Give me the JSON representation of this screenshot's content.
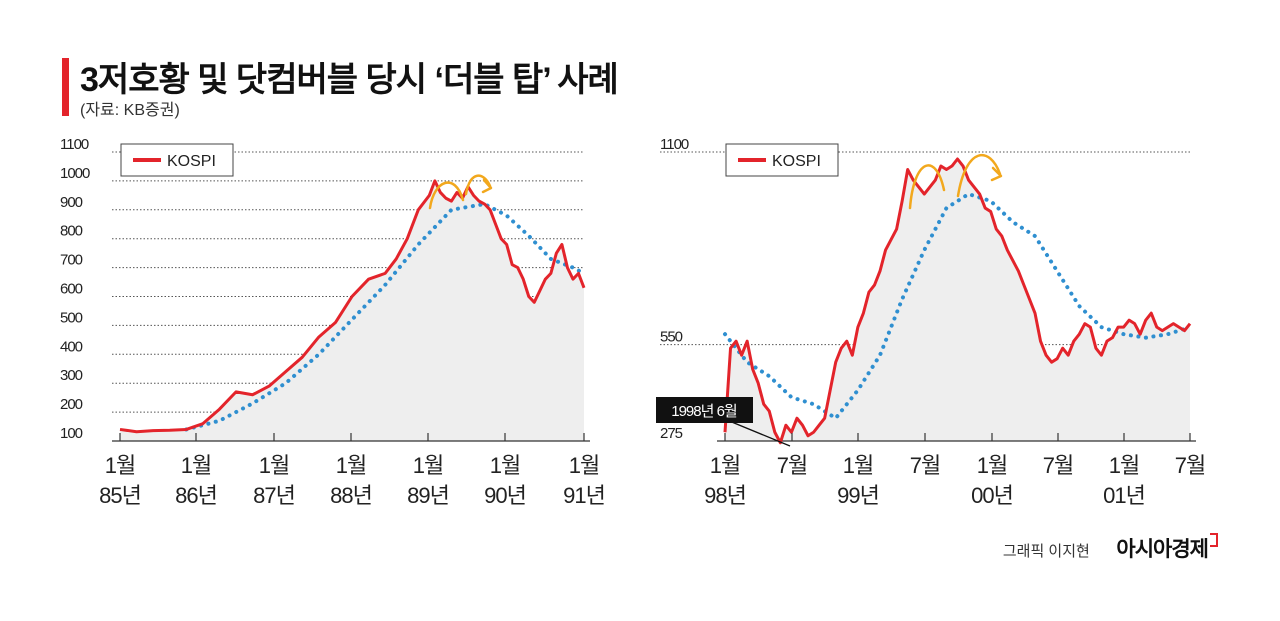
{
  "title": "3저호황 및 닷컴버블 당시 ‘더블 탑’ 사례",
  "source": "(자료: KB증권)",
  "credit": "그래픽 이지현",
  "brand": "아시아경제",
  "colors": {
    "accent": "#e3242b",
    "series": "#e3242b",
    "trend": "#2f8fd0",
    "arrow": "#f2a81d",
    "fill": "#eeeeee"
  },
  "chart_data": [
    {
      "type": "line",
      "grid": true,
      "legend_placement": "top-left",
      "legend": "KOSPI",
      "ylim": [
        100,
        1100
      ],
      "yticks": [
        "100",
        "200",
        "300",
        "400",
        "500",
        "600",
        "700",
        "800",
        "900",
        "1000",
        "1100"
      ],
      "xticks": [
        {
          "month": "1월",
          "year": "85년"
        },
        {
          "month": "1월",
          "year": "86년"
        },
        {
          "month": "1월",
          "year": "87년"
        },
        {
          "month": "1월",
          "year": "88년"
        },
        {
          "month": "1월",
          "year": "89년"
        },
        {
          "month": "1월",
          "year": "90년"
        },
        {
          "month": "1월",
          "year": "91년"
        }
      ],
      "series": [
        {
          "name": "KOSPI",
          "style": "solid",
          "x": [
            0,
            3,
            6,
            9,
            12,
            15,
            18,
            21,
            24,
            27,
            30,
            33,
            36,
            39,
            42,
            45,
            48,
            50,
            52,
            54,
            56,
            57,
            58,
            59,
            60,
            61,
            62,
            63,
            64,
            65,
            66,
            67,
            68,
            69,
            70,
            71,
            72,
            73,
            74,
            75,
            76,
            77,
            78,
            79,
            80,
            81,
            82,
            83,
            84
          ],
          "y": [
            140,
            132,
            136,
            137,
            140,
            160,
            210,
            270,
            260,
            290,
            340,
            390,
            460,
            510,
            600,
            660,
            680,
            730,
            800,
            900,
            950,
            1000,
            960,
            940,
            930,
            960,
            940,
            980,
            950,
            930,
            920,
            900,
            850,
            800,
            780,
            710,
            700,
            660,
            600,
            580,
            620,
            660,
            680,
            750,
            780,
            700,
            660,
            680,
            630
          ]
        },
        {
          "name": "",
          "style": "dotted",
          "x": [
            12,
            18,
            24,
            30,
            36,
            42,
            48,
            54,
            60,
            66,
            70,
            74,
            78,
            82,
            84
          ],
          "y": [
            140,
            170,
            230,
            300,
            400,
            520,
            640,
            780,
            900,
            920,
            880,
            810,
            730,
            700,
            680
          ]
        }
      ],
      "annotations": [
        {
          "type": "arrow",
          "count": 2
        }
      ]
    },
    {
      "type": "line",
      "grid": true,
      "legend_placement": "top-left",
      "legend": "KOSPI",
      "ylim": [
        275,
        1100
      ],
      "yticks": [
        "275",
        "550",
        "1100"
      ],
      "xticks": [
        {
          "month": "1월",
          "year": "98년"
        },
        {
          "month": "7월",
          "year": ""
        },
        {
          "month": "1월",
          "year": "99년"
        },
        {
          "month": "7월",
          "year": ""
        },
        {
          "month": "1월",
          "year": "00년"
        },
        {
          "month": "7월",
          "year": ""
        },
        {
          "month": "1월",
          "year": "01년"
        },
        {
          "month": "7월",
          "year": ""
        }
      ],
      "series": [
        {
          "name": "KOSPI",
          "style": "solid",
          "x": [
            0,
            0.5,
            1,
            1.5,
            2,
            2.5,
            3,
            3.5,
            4,
            4.5,
            5,
            5.5,
            6,
            6.5,
            7,
            7.5,
            8,
            8.5,
            9,
            9.5,
            10,
            10.5,
            11,
            11.5,
            12,
            12.5,
            13,
            13.5,
            14,
            14.5,
            15,
            15.5,
            16,
            16.5,
            17,
            17.5,
            18,
            18.5,
            19,
            19.5,
            20,
            20.5,
            21,
            21.5,
            22,
            22.5,
            23,
            23.5,
            24,
            24.5,
            25,
            25.5,
            26,
            26.5,
            27,
            27.5,
            28,
            28.5,
            29,
            29.5,
            30,
            30.5,
            31,
            31.5,
            32,
            32.5,
            33,
            33.5,
            34,
            34.5,
            35,
            35.5,
            36,
            36.5,
            37,
            37.5,
            38,
            38.5,
            39,
            39.5,
            40,
            40.5,
            41,
            41.5,
            42
          ],
          "y": [
            300,
            540,
            560,
            520,
            560,
            480,
            440,
            380,
            360,
            300,
            270,
            320,
            300,
            340,
            320,
            290,
            300,
            320,
            340,
            420,
            500,
            540,
            560,
            520,
            600,
            640,
            700,
            720,
            760,
            820,
            850,
            880,
            960,
            1050,
            1020,
            1000,
            980,
            1000,
            1020,
            1060,
            1050,
            1060,
            1080,
            1060,
            1020,
            1000,
            980,
            940,
            930,
            880,
            860,
            820,
            790,
            760,
            720,
            680,
            640,
            560,
            520,
            500,
            510,
            540,
            520,
            560,
            580,
            610,
            600,
            540,
            520,
            560,
            570,
            600,
            600,
            620,
            610,
            580,
            620,
            640,
            600,
            590,
            600,
            610,
            600,
            590,
            610
          ]
        },
        {
          "name": "",
          "style": "dotted",
          "x": [
            0,
            2,
            4,
            6,
            8,
            10,
            12,
            14,
            16,
            18,
            20,
            22,
            24,
            26,
            28,
            30,
            32,
            34,
            36,
            38,
            40,
            42
          ],
          "y": [
            580,
            500,
            460,
            400,
            380,
            340,
            420,
            520,
            680,
            820,
            940,
            980,
            960,
            900,
            860,
            760,
            660,
            600,
            580,
            570,
            580,
            600
          ]
        }
      ],
      "annotations": [
        {
          "type": "callout",
          "label": "1998년 6월"
        },
        {
          "type": "arrow",
          "count": 2
        }
      ]
    }
  ]
}
